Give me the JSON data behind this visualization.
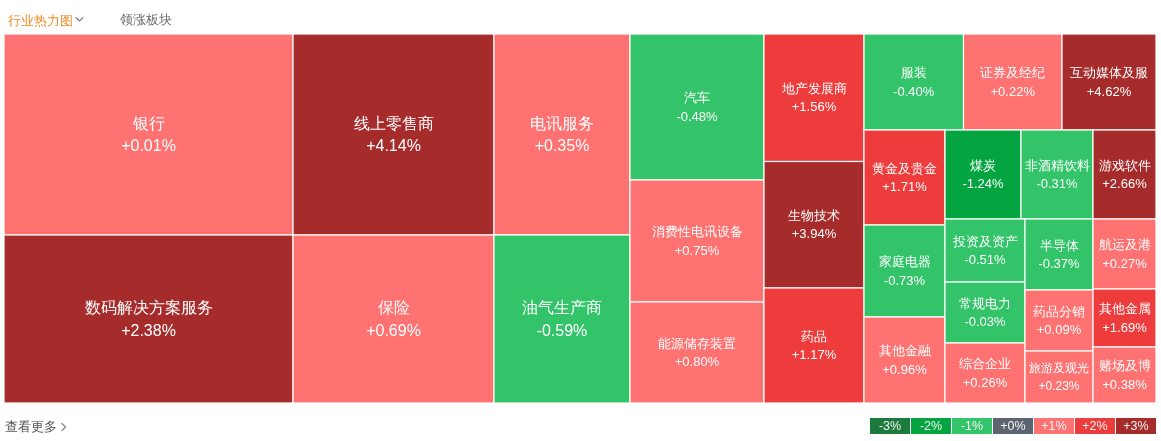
{
  "chart_data": [
    {
      "type": "other",
      "title": "行业热力图",
      "annotations": [
        "领涨板块",
        "查看更多"
      ],
      "categories": [
        "银行",
        "数码解决方案服务",
        "线上零售商",
        "保险",
        "电讯服务",
        "油气生产商",
        "汽车",
        "消费性电讯设备",
        "能源储存装置",
        "地产发展商",
        "生物技术",
        "药品",
        "服装",
        "证券及经纪",
        "互动媒体及服",
        "黄金及贵金",
        "家庭电器",
        "其他金融",
        "煤炭",
        "非酒精饮料",
        "游戏软件",
        "投资及资产",
        "常规电力",
        "综合企业",
        "半导体",
        "药品分销",
        "旅游及观光",
        "航运及港",
        "其他金属",
        "赌场及博"
      ],
      "values": [
        0.01,
        2.38,
        4.14,
        0.69,
        0.35,
        -0.59,
        -0.48,
        0.75,
        0.8,
        1.56,
        3.94,
        1.17,
        -0.4,
        0.22,
        4.62,
        1.71,
        -0.73,
        0.96,
        -1.24,
        -0.31,
        2.66,
        -0.51,
        -0.03,
        0.26,
        -0.37,
        0.09,
        0.23,
        0.27,
        1.69,
        0.38
      ],
      "value_labels": [
        "+0.01%",
        "+2.38%",
        "+4.14%",
        "+0.69%",
        "+0.35%",
        "-0.59%",
        "-0.48%",
        "+0.75%",
        "+0.80%",
        "+1.56%",
        "+3.94%",
        "+1.17%",
        "-0.40%",
        "+0.22%",
        "+4.62%",
        "+1.71%",
        "-0.73%",
        "+0.96%",
        "-1.24%",
        "-0.31%",
        "+2.66%",
        "-0.51%",
        "-0.03%",
        "+0.26%",
        "-0.37%",
        "+0.09%",
        "+0.23%",
        "+0.27%",
        "+1.69%",
        "+0.38%"
      ]
    },
    {
      "type": "heatmap",
      "categories": [
        null,
        null,
        null,
        null,
        null,
        null,
        null
      ],
      "y_categories": [
        null
      ],
      "cells": [
        [
          -3,
          -2,
          -1,
          0,
          1,
          2,
          3
        ]
      ],
      "cell_labels": [
        [
          "-3%",
          "-2%",
          "-1%",
          "+0%",
          "+1%",
          "+2%",
          "+3%"
        ]
      ]
    }
  ]
}
